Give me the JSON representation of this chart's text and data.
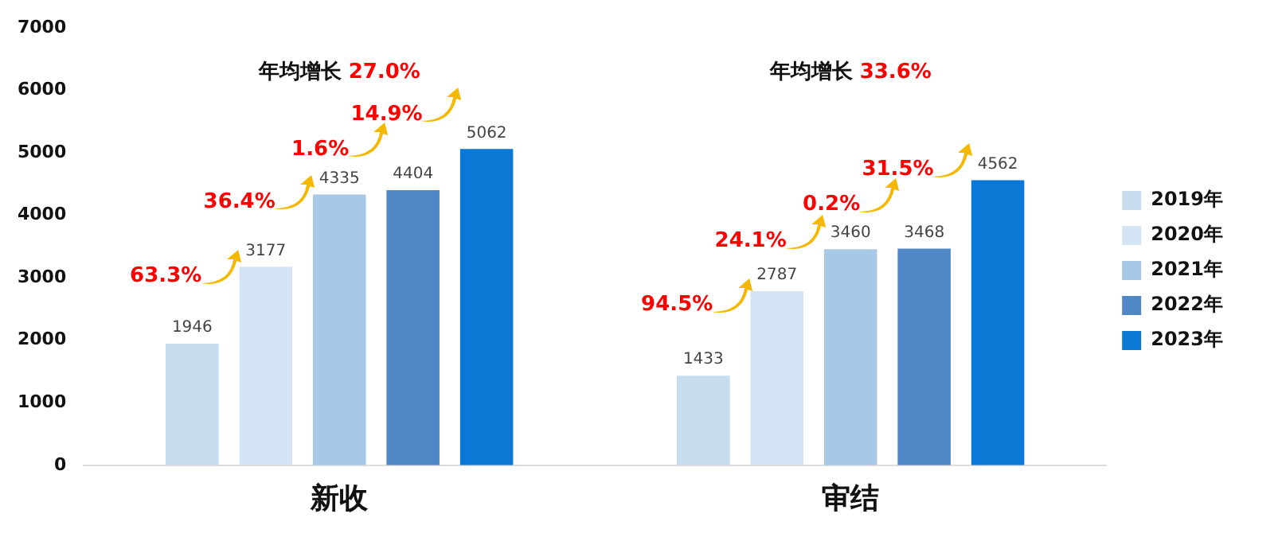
{
  "chart_data": {
    "type": "bar",
    "categories": [
      "新收",
      "审结"
    ],
    "series": [
      {
        "name": "2019年",
        "color": "#c8dcf0",
        "values": [
          1946,
          1433
        ]
      },
      {
        "name": "2020年",
        "color": "#d4e4f4",
        "values": [
          3177,
          2787
        ]
      },
      {
        "name": "2021年",
        "color": "#a8c8e8",
        "values": [
          4335,
          3460
        ]
      },
      {
        "name": "2022年",
        "color": "#4f88c4",
        "values": [
          4404,
          3468
        ]
      },
      {
        "name": "2023年",
        "color": "#0a78d4",
        "values": [
          5062,
          4562
        ]
      }
    ],
    "ylim": [
      0,
      7000
    ],
    "yticks": [
      0,
      1000,
      2000,
      3000,
      4000,
      5000,
      6000,
      7000
    ],
    "grid": false,
    "legend": "right",
    "data_labels": true,
    "annotations": [
      "年均增长 27.0%",
      "63.3%",
      "36.4%",
      "1.6%",
      "14.9%",
      "年均增长 33.6%",
      "94.5%",
      "24.1%",
      "0.2%",
      "31.5%"
    ]
  }
}
